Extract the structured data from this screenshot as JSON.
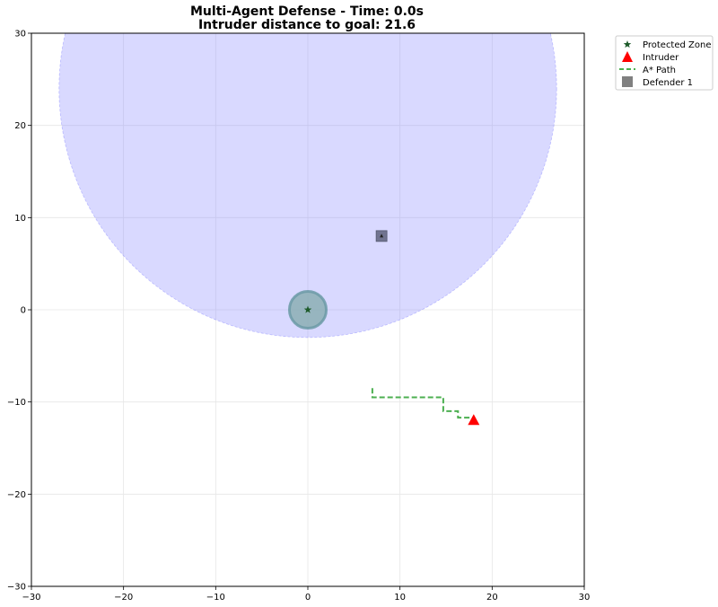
{
  "chart_data": {
    "type": "scatter",
    "title": "Multi-Agent Defense - Time: 0.0s",
    "subtitle": "Intruder distance to goal: 21.6",
    "xlabel": "",
    "ylabel": "",
    "xlim": [
      -30,
      30
    ],
    "ylim": [
      -30,
      30
    ],
    "x_ticks": [
      -30,
      -20,
      -10,
      0,
      10,
      20,
      30
    ],
    "y_ticks": [
      -30,
      -20,
      -10,
      0,
      10,
      20,
      30
    ],
    "x_tick_labels": [
      "−30",
      "−20",
      "−10",
      "0",
      "10",
      "20",
      "30"
    ],
    "y_tick_labels": [
      "−30",
      "−20",
      "−10",
      "0",
      "10",
      "20",
      "30"
    ],
    "grid": true,
    "legend_position": "outside-top-right",
    "colors": {
      "protected_zone": "#1e5b2a",
      "intruder": "#ff0000",
      "path": "#4caf50",
      "defender": "#808080",
      "defender_region": "#8888ff"
    },
    "legend": [
      {
        "label": "Protected Zone",
        "marker": "star",
        "color": "#1e5b2a"
      },
      {
        "label": "Intruder",
        "marker": "triangle",
        "color": "#ff0000"
      },
      {
        "label": "A* Path",
        "marker": "dashed-line",
        "color": "#4caf50"
      },
      {
        "label": "Defender 1",
        "marker": "square",
        "color": "#808080"
      }
    ],
    "protected_zone": {
      "x": 0,
      "y": 0,
      "radius": 2
    },
    "intruder": {
      "x": 18,
      "y": -12
    },
    "defender": {
      "x": 8,
      "y": 8
    },
    "defender_region": {
      "x": 0,
      "y": 24,
      "radius": 27
    },
    "astar_path": [
      [
        7,
        -8.5
      ],
      [
        7,
        -9.5
      ],
      [
        14.7,
        -9.5
      ],
      [
        14.7,
        -11
      ],
      [
        16.3,
        -11
      ],
      [
        16.3,
        -11.7
      ],
      [
        18,
        -11.7
      ]
    ]
  }
}
